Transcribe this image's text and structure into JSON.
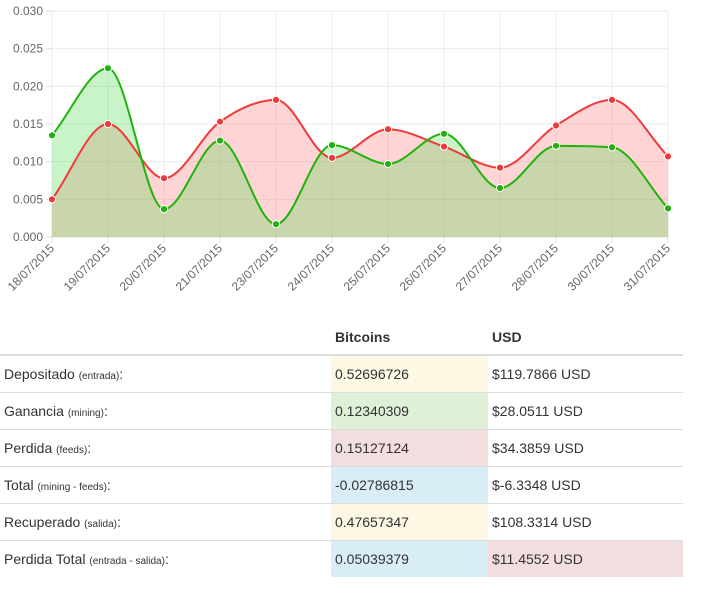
{
  "chart_data": {
    "type": "area",
    "categories": [
      "18/07/2015",
      "19/07/2015",
      "20/07/2015",
      "21/07/2015",
      "23/07/2015",
      "24/07/2015",
      "25/07/2015",
      "26/07/2015",
      "27/07/2015",
      "28/07/2015",
      "30/07/2015",
      "31/07/2015"
    ],
    "ylim": [
      0,
      0.03
    ],
    "yticks": [
      "0.000",
      "0.005",
      "0.010",
      "0.015",
      "0.020",
      "0.025",
      "0.030"
    ],
    "grid": true,
    "series": [
      {
        "values": [
          0.005,
          0.015,
          0.0078,
          0.0153,
          0.0182,
          0.0105,
          0.0143,
          0.012,
          0.0092,
          0.0148,
          0.0182,
          0.0107
        ],
        "color": "#f03a3a",
        "fill": "rgba(255,120,120,0.32)"
      },
      {
        "values": [
          0.0135,
          0.0224,
          0.0037,
          0.0128,
          0.0017,
          0.0122,
          0.0097,
          0.0137,
          0.0065,
          0.0121,
          0.0119,
          0.0038
        ],
        "color": "#22b20e",
        "fill": "rgba(60,215,60,0.28)"
      }
    ]
  },
  "table": {
    "col_bitcoins": "Bitcoins",
    "col_usd": "USD",
    "rows": [
      {
        "label": "Depositado",
        "note": "(entrada)",
        "suffix": ":",
        "btc": "0.52696726",
        "usd": "$119.7866 USD"
      },
      {
        "label": "Ganancia",
        "note": "(mining)",
        "suffix": ":",
        "btc": "0.12340309",
        "usd": "$28.0511 USD"
      },
      {
        "label": "Perdida",
        "note": "(feeds)",
        "suffix": ":",
        "btc": "0.15127124",
        "usd": "$34.3859 USD"
      },
      {
        "label": "Total",
        "note": "(mining - feeds)",
        "suffix": ":",
        "btc": "-0.02786815",
        "usd": "$-6.3348 USD"
      },
      {
        "label": "Recuperado",
        "note": "(salida)",
        "suffix": ":",
        "btc": "0.47657347",
        "usd": "$108.3314 USD"
      },
      {
        "label": "Perdida Total",
        "note": "(entrada - salida)",
        "suffix": ":",
        "btc": "0.05039379",
        "usd": "$11.4552 USD"
      }
    ]
  }
}
